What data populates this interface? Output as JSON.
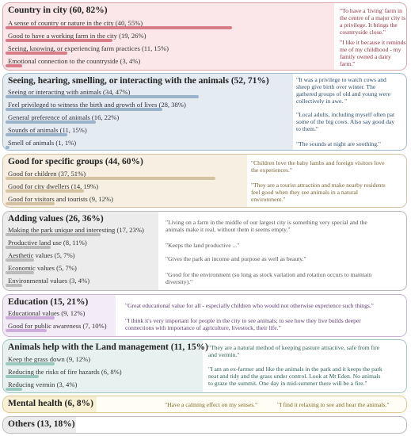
{
  "themes": [
    {
      "title": "Country in city (60, 82%)",
      "items": [
        {
          "label": "A sense of country or nature in the city (40, 55%)",
          "pct": 55
        },
        {
          "label": "Good to have a working farm in the city (19, 26%)",
          "pct": 26
        },
        {
          "label": "Seeing, knowing, or experiencing farm practices (11, 15%)",
          "pct": 15
        },
        {
          "label": "Emotional connection to the countryside (3, 4%)",
          "pct": 4
        }
      ],
      "quotes": [
        [
          "\"To have a 'living' farm in",
          "the centre of a major city is",
          "a privilege. It brings the",
          "countryside close.\""
        ],
        [
          "\"I like it because it reminds",
          "me of my childhood - my",
          "family owned a dairy",
          "farm.\""
        ]
      ]
    },
    {
      "title": "Seeing, hearing, smelling, or interacting with the animals (52, 71%)",
      "items": [
        {
          "label": "Seeing or interacting with animals (34, 47%)",
          "pct": 47
        },
        {
          "label": "Feel privileged to witness the birth and growth of lives (28, 38%)",
          "pct": 38
        },
        {
          "label": "General preference of animals (16, 22%)",
          "pct": 22
        },
        {
          "label": "Sounds of animals (11, 15%)",
          "pct": 15
        },
        {
          "label": "Smell of animals (1, 1%)",
          "pct": 1
        }
      ],
      "quotes": [
        [
          "\"It was a privilege to watch cows and",
          "sheep give birth over winter. The",
          "gathered groups of old and young were",
          "collectively in awe. \""
        ],
        [
          "\"Local adults, including myself often pat",
          "some of the big cows. Also say good day",
          "to them.\""
        ],
        [
          "\"The sounds at night are soothing.\""
        ]
      ]
    },
    {
      "title": "Good for specific groups (44, 60%)",
      "items": [
        {
          "label": "Good for children (37, 51%)",
          "pct": 51
        },
        {
          "label": "Good for city dwellers (14, 19%)",
          "pct": 19
        },
        {
          "label": "Good for visitors and tourists (9, 12%)",
          "pct": 12
        }
      ],
      "quotes": [
        [
          "\"Children love the baby lambs and foreign visitors love",
          "the experiences.\""
        ],
        [
          "\"They are a tourist attraction and make nearby residents",
          "feel good when they see animals in a natural",
          "environment.\""
        ]
      ]
    },
    {
      "title": "Adding values (26, 36%)",
      "items": [
        {
          "label": "Making the park unique and interesting (17, 23%)",
          "pct": 23
        },
        {
          "label": "Productive land use (8, 11%)",
          "pct": 11
        },
        {
          "label": "Aesthetic values (5, 7%)",
          "pct": 7
        },
        {
          "label": "Economic values (5, 7%)",
          "pct": 7
        },
        {
          "label": "Environmental values (3, 4%)",
          "pct": 4
        }
      ],
      "quotes": [
        [
          "\"Living on a farm in the middle of our largest city is something very special and the",
          "animals make it real, without them it seems empty.\""
        ],
        [
          "\"Keeps the land productive ...\""
        ],
        [
          "\"Gives the park an income and purpose as well as beauty.\""
        ],
        [
          "\"Good for the environment (so long as stock variation and rotation occurs to maintain",
          "diversity).\""
        ]
      ]
    },
    {
      "title": "Education (15, 21%)",
      "items": [
        {
          "label": "Educational values (9, 12%)",
          "pct": 12
        },
        {
          "label": "Good for public awareness (7, 10%)",
          "pct": 10
        }
      ],
      "quotes": [
        [
          "\"Great educational value for all - especially children who would not otherwise experience such things.\""
        ],
        [
          "\"I think it's very important for people in the city to see animals; to see how they live builds deeper",
          "connections with importance of agriculture, livestock, their life.\""
        ]
      ]
    },
    {
      "title": "Animals help with the Land management (11, 15%)",
      "items": [
        {
          "label": "Keep the grass down (9, 12%)",
          "pct": 12
        },
        {
          "label": "Reducing the risks of fire hazards (6, 8%)",
          "pct": 8
        },
        {
          "label": "Reducing vermin (3, 4%)",
          "pct": 4
        }
      ],
      "quotes": [
        [
          "\"They are a natural method of keeping pasture attractive, safe from fire",
          "and vermin.\""
        ],
        [
          "\"I am an ex-farmer and like the animals in the park and it keeps the park",
          "neat and tidy and the grass under control. Look at Mt Eden. No animals",
          "to graze the summit. One day in mid-summer there will be a fire.\""
        ]
      ]
    },
    {
      "title": "Mental health (6, 8%)",
      "items": [],
      "quotes": [
        [
          "\"Have a calming effect on my senses.\""
        ],
        [
          "\"I find it relaxing to see and hear the animals.\""
        ]
      ]
    },
    {
      "title": "Others (13, 18%)",
      "items": [],
      "quotes": []
    }
  ]
}
